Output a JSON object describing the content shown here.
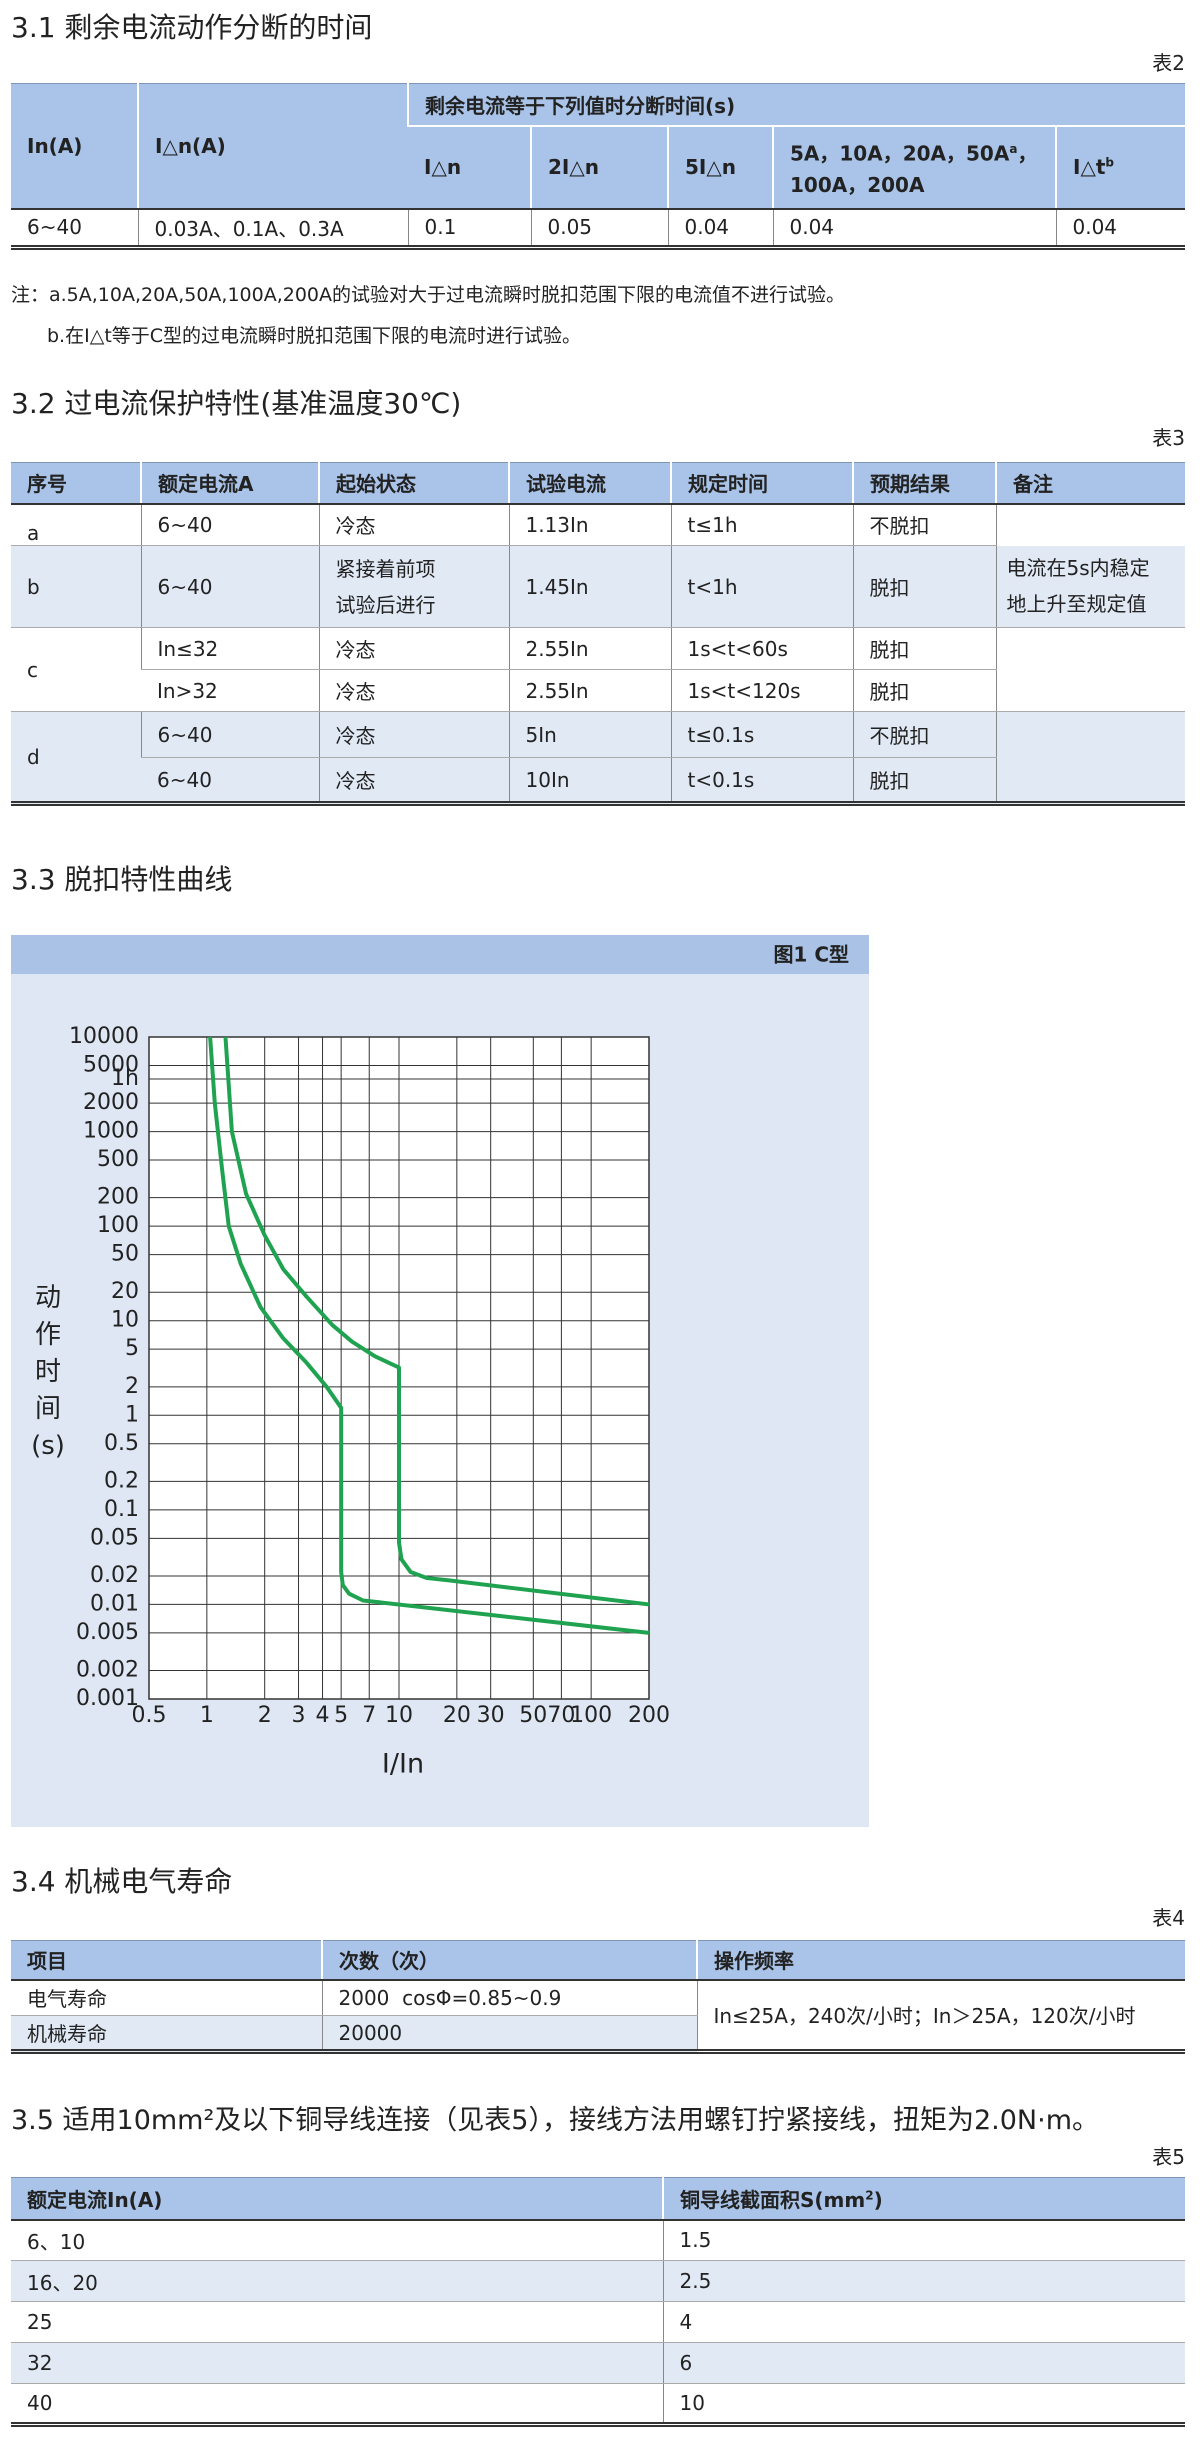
{
  "sections": [
    {
      "heading": "3.1 剩余电流动作分断的时间",
      "table_label": "表2",
      "table": {
        "header_top": [
          "In(A)",
          "I△n(A)",
          "剩余电流等于下列值时分断时间(s)"
        ],
        "header_sub": [
          "I△n",
          "2I△n",
          "5I△n",
          {
            "before": "5A，10A，20A，50A",
            "sup": "a",
            "after": "，100A，200A"
          },
          {
            "before": "I△t",
            "sup": "b"
          }
        ],
        "rows": [
          [
            "6~40",
            "0.03A、0.1A、0.3A",
            "0.1",
            "0.05",
            "0.04",
            "0.04",
            "0.04"
          ]
        ]
      },
      "notes": [
        "注：a.5A,10A,20A,50A,100A,200A的试验对大于过电流瞬时脱扣范围下限的电流值不进行试验。",
        "b.在I△t等于C型的过电流瞬时脱扣范围下限的电流时进行试验。"
      ]
    },
    {
      "heading": "3.2 过电流保护特性(基准温度30℃)",
      "table_label": "表3",
      "table": {
        "columns": [
          "序号",
          "额定电流A",
          "起始状态",
          "试验电流",
          "规定时间",
          "预期结果",
          "备注"
        ],
        "groups": [
          {
            "id": "a",
            "rows": [
              [
                "6~40",
                "冷态",
                "1.13In",
                "t≤1h",
                "不脱扣"
              ]
            ]
          },
          {
            "id": "b",
            "rows": [
              [
                "6~40",
                [
                  "紧接着前项",
                  "试验后进行"
                ],
                "1.45In",
                "t<1h",
                "脱扣"
              ]
            ],
            "remark": [
              "电流在5s内稳定",
              "地上升至规定值"
            ]
          },
          {
            "id": "c",
            "rows": [
              [
                "In≤32",
                "冷态",
                "2.55In",
                "1s<t<60s",
                "脱扣"
              ],
              [
                "In>32",
                "冷态",
                "2.55In",
                "1s<t<120s",
                "脱扣"
              ]
            ]
          },
          {
            "id": "d",
            "rows": [
              [
                "6~40",
                "冷态",
                "5In",
                "t≤0.1s",
                "不脱扣"
              ],
              [
                "6~40",
                "冷态",
                "10In",
                "t<0.1s",
                "脱扣"
              ]
            ]
          }
        ]
      }
    },
    {
      "heading": "3.3 脱扣特性曲线"
    },
    {
      "heading": "3.4 机械电气寿命",
      "table_label": "表4",
      "table": {
        "columns": [
          "项目",
          "次数（次）",
          "操作频率"
        ],
        "rows": [
          [
            "电气寿命",
            "2000  cosΦ=0.85~0.9"
          ],
          [
            "机械寿命",
            "20000"
          ]
        ],
        "frequency": "In≤25A，240次/小时；In＞25A，120次/小时"
      }
    },
    {
      "heading": "3.5 适用10mm²及以下铜导线连接（见表5），接线方法用螺钉拧紧接线，扭矩为2.0N·m。",
      "table_label": "表5",
      "table": {
        "columns": [
          "额定电流In(A)",
          {
            "before": "铜导线截面积S(mm",
            "sup": "2",
            "after": ")"
          }
        ],
        "rows": [
          [
            "6、10",
            "1.5"
          ],
          [
            "16、20",
            "2.5"
          ],
          [
            "25",
            "4"
          ],
          [
            "32",
            "6"
          ],
          [
            "40",
            "10"
          ]
        ]
      }
    }
  ],
  "chart_data": {
    "type": "line",
    "title": "图1  C型",
    "ylabel": "动作时间(s)",
    "xlabel": "I/In",
    "xscale": "log",
    "yscale": "log",
    "xlim": [
      0.5,
      200
    ],
    "ylim": [
      0.001,
      10000
    ],
    "xticks": [
      0.5,
      1,
      2,
      3,
      4,
      5,
      7,
      10,
      20,
      30,
      50,
      70,
      100,
      200
    ],
    "yticks": [
      10000,
      5000,
      {
        "value": 3600,
        "label": "1h"
      },
      2000,
      1000,
      500,
      200,
      100,
      50,
      20,
      10,
      5,
      2,
      1,
      0.5,
      0.2,
      0.1,
      0.05,
      0.02,
      0.01,
      0.005,
      0.002,
      0.001
    ],
    "grid": true,
    "series": [
      {
        "color": "#1fa350",
        "x": [
          1.04,
          1.1,
          1.2,
          1.3,
          1.5,
          1.9,
          2.5,
          3.3,
          4.2,
          5,
          5,
          5.1,
          5.5,
          6.5,
          8,
          200
        ],
        "values": [
          10000,
          2000,
          400,
          100,
          40,
          14,
          6.5,
          3.6,
          2,
          1.2,
          0.022,
          0.016,
          0.013,
          0.011,
          0.0105,
          0.005
        ]
      },
      {
        "color": "#1fa350",
        "x": [
          1.25,
          1.35,
          1.6,
          2,
          2.5,
          3.3,
          4.5,
          5.7,
          7.5,
          10,
          10,
          10.3,
          11.5,
          14,
          18,
          200
        ],
        "values": [
          10000,
          1000,
          220,
          80,
          35,
          18,
          9,
          6,
          4.2,
          3.2,
          0.045,
          0.03,
          0.022,
          0.019,
          0.018,
          0.01
        ]
      }
    ]
  }
}
